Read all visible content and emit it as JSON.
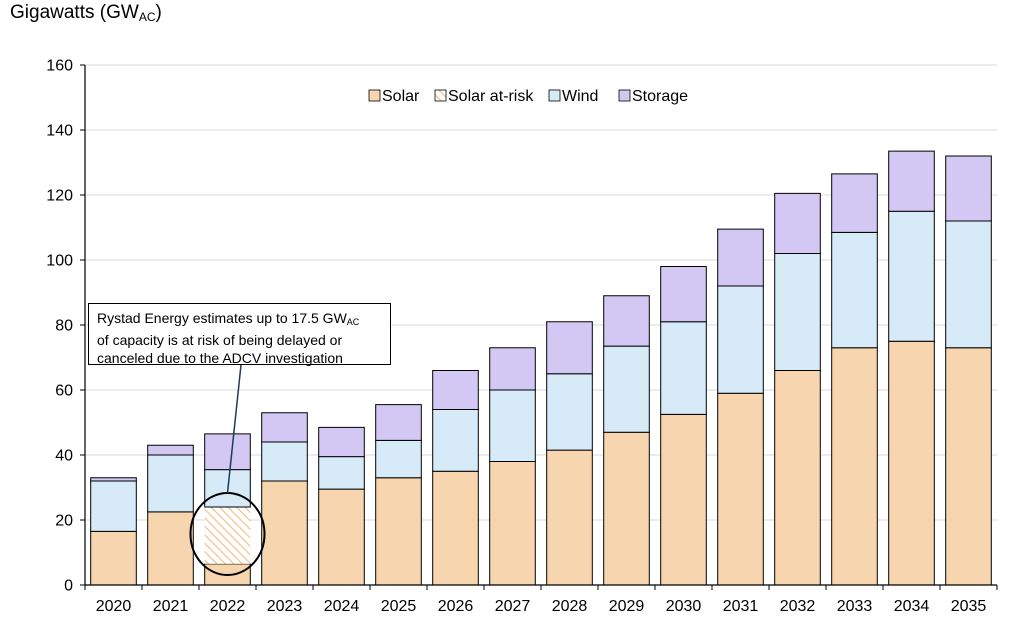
{
  "chart_data": {
    "type": "bar",
    "stacked": true,
    "title": "",
    "ylabel": {
      "prefix": "Gigawatts (GW",
      "sub": "AC",
      "suffix": ")"
    },
    "xlabel": "",
    "ylim": [
      0,
      160
    ],
    "yticks": [
      0,
      20,
      40,
      60,
      80,
      100,
      120,
      140,
      160
    ],
    "grid": true,
    "legend_position": "top-center",
    "categories": [
      "2020",
      "2021",
      "2022",
      "2023",
      "2024",
      "2025",
      "2026",
      "2027",
      "2028",
      "2029",
      "2030",
      "2031",
      "2032",
      "2033",
      "2034",
      "2035"
    ],
    "series": [
      {
        "name": "Solar",
        "color": "#f7d5ae",
        "values": [
          16.5,
          22.5,
          6.5,
          32.0,
          29.5,
          33.0,
          35.0,
          38.0,
          41.5,
          47.0,
          52.5,
          59.0,
          66.0,
          73.0,
          75.0,
          73.0
        ]
      },
      {
        "name": "Solar at-risk",
        "color": "#f7d5ae",
        "hatched": true,
        "values": [
          0,
          0,
          17.5,
          0,
          0,
          0,
          0,
          0,
          0,
          0,
          0,
          0,
          0,
          0,
          0,
          0
        ]
      },
      {
        "name": "Wind",
        "color": "#d6eaf8",
        "values": [
          15.5,
          17.5,
          11.5,
          12.0,
          10.0,
          11.5,
          19.0,
          22.0,
          23.5,
          26.5,
          28.5,
          33.0,
          36.0,
          35.5,
          40.0,
          39.0
        ]
      },
      {
        "name": "Storage",
        "color": "#d2c8f3",
        "values": [
          1.0,
          3.0,
          11.0,
          9.0,
          9.0,
          11.0,
          12.0,
          13.0,
          16.0,
          15.5,
          17.0,
          17.5,
          18.5,
          18.0,
          18.5,
          20.0
        ]
      }
    ],
    "annotation": {
      "line1_prefix": "Rystad Energy estimates up to 17.5 GW",
      "line1_sub": "AC",
      "line2": "of capacity is at risk of being delayed or",
      "line3": "canceled due to the ADCV investigation",
      "target_category": "2022"
    }
  }
}
